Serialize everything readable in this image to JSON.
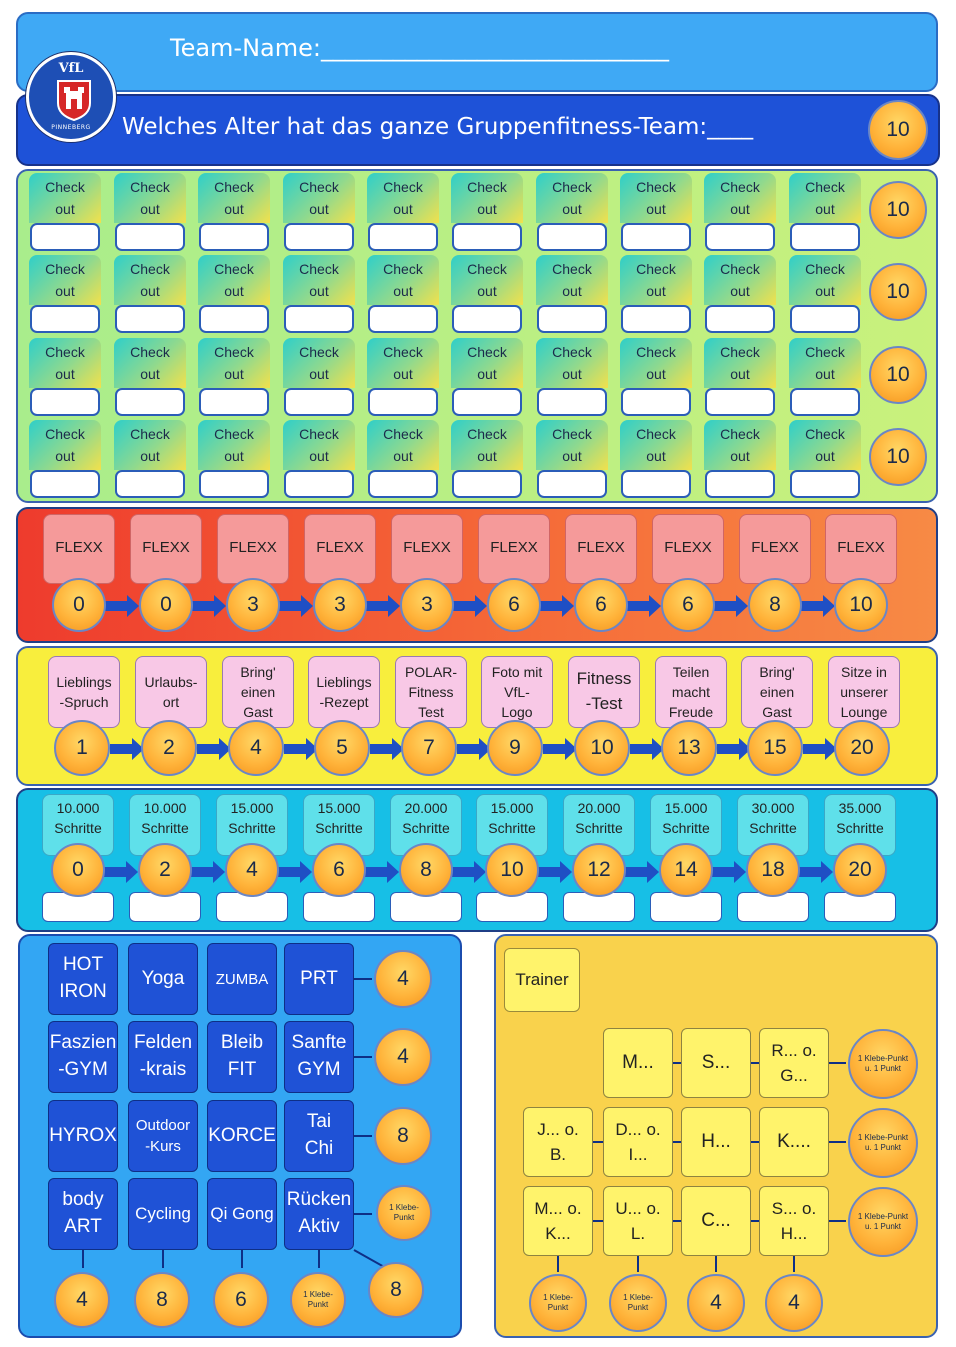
{
  "header": {
    "team_name": "Team-Name:_____________________________",
    "age_question": "Welches Alter hat das ganze Gruppenfitness-Team:____",
    "age_points": "10"
  },
  "logo": {
    "brand": "VfL",
    "city": "PINNEBERG"
  },
  "checkout": {
    "label": "Check\nout",
    "rows": [
      {
        "points": "10"
      },
      {
        "points": "10"
      },
      {
        "points": "10"
      },
      {
        "points": "10"
      }
    ]
  },
  "flexx": {
    "label": "FLEXX",
    "points": [
      "0",
      "0",
      "3",
      "3",
      "3",
      "6",
      "6",
      "6",
      "8",
      "10"
    ]
  },
  "activities": {
    "items": [
      {
        "label": "Lieblings\n-Spruch",
        "points": "1"
      },
      {
        "label": "Urlaubs-\nort",
        "points": "2"
      },
      {
        "label": "Bring'\neinen\nGast",
        "points": "4"
      },
      {
        "label": "Lieblings\n-Rezept",
        "points": "5"
      },
      {
        "label": "POLAR-\nFitness\nTest",
        "points": "7"
      },
      {
        "label": "Foto mit\nVfL-\nLogo",
        "points": "9"
      },
      {
        "label": "Fitness\n-Test",
        "points": "10"
      },
      {
        "label": "Teilen\nmacht\nFreude",
        "points": "13"
      },
      {
        "label": "Bring'\neinen\nGast",
        "points": "15"
      },
      {
        "label": "Sitze in\nunserer\nLounge",
        "points": "20"
      }
    ]
  },
  "steps": {
    "items": [
      {
        "label": "10.000\nSchritte",
        "points": "0"
      },
      {
        "label": "10.000\nSchritte",
        "points": "2"
      },
      {
        "label": "15.000\nSchritte",
        "points": "4"
      },
      {
        "label": "15.000\nSchritte",
        "points": "6"
      },
      {
        "label": "20.000\nSchritte",
        "points": "8"
      },
      {
        "label": "15.000\nSchritte",
        "points": "10"
      },
      {
        "label": "20.000\nSchritte",
        "points": "12"
      },
      {
        "label": "15.000\nSchritte",
        "points": "14"
      },
      {
        "label": "30.000\nSchritte",
        "points": "18"
      },
      {
        "label": "35.000\nSchritte",
        "points": "20"
      }
    ]
  },
  "courses": {
    "grid": [
      [
        "HOT\nIRON",
        "Yoga",
        "ZUMBA",
        "PRT"
      ],
      [
        "Faszien\n-GYM",
        "Felden\n-krais",
        "Bleib\nFIT",
        "Sanfte\nGYM"
      ],
      [
        "HYROX",
        "Outdoor\n-Kurs",
        "KORCE",
        "Tai\nChi"
      ],
      [
        "body\nART",
        "Cycling",
        "Qi Gong",
        "Rücken\nAktiv"
      ]
    ],
    "row_points": [
      "4",
      "4",
      "8",
      "1 Klebe-Punkt"
    ],
    "column_points": [
      "4",
      "8",
      "6",
      "1 Klebe-Punkt"
    ],
    "diagonal_points": "8"
  },
  "trainer": {
    "label": "Trainer",
    "grid": [
      [
        "",
        "M...",
        "S...",
        "R... o.\nG..."
      ],
      [
        "J... o.\nB.",
        "D... o.\nI...",
        "H...",
        "K...."
      ],
      [
        "M... o.\nK...",
        "U... o.\nL.",
        "C...",
        "S... o.\nH..."
      ]
    ],
    "row_points": [
      "1 Klebe-Punkt u. 1 Punkt",
      "1 Klebe-Punkt u. 1 Punkt",
      "1 Klebe-Punkt u. 1 Punkt"
    ],
    "column_points": [
      "1 Klebe-Punkt",
      "1 Klebe-Punkt",
      "4",
      "4"
    ]
  },
  "colors": {
    "team_bar": "#3fa9f5",
    "age_bar": "#1e52d8",
    "checkout_panel": "#b5ef86",
    "flexx_panel": "#f2503a",
    "activities_panel": "#f8ee3d",
    "steps_panel": "#17bfe6",
    "courses_panel": "#33a6f3",
    "trainer_panel": "#f9d24c",
    "arrow": "#1f4fc4"
  }
}
